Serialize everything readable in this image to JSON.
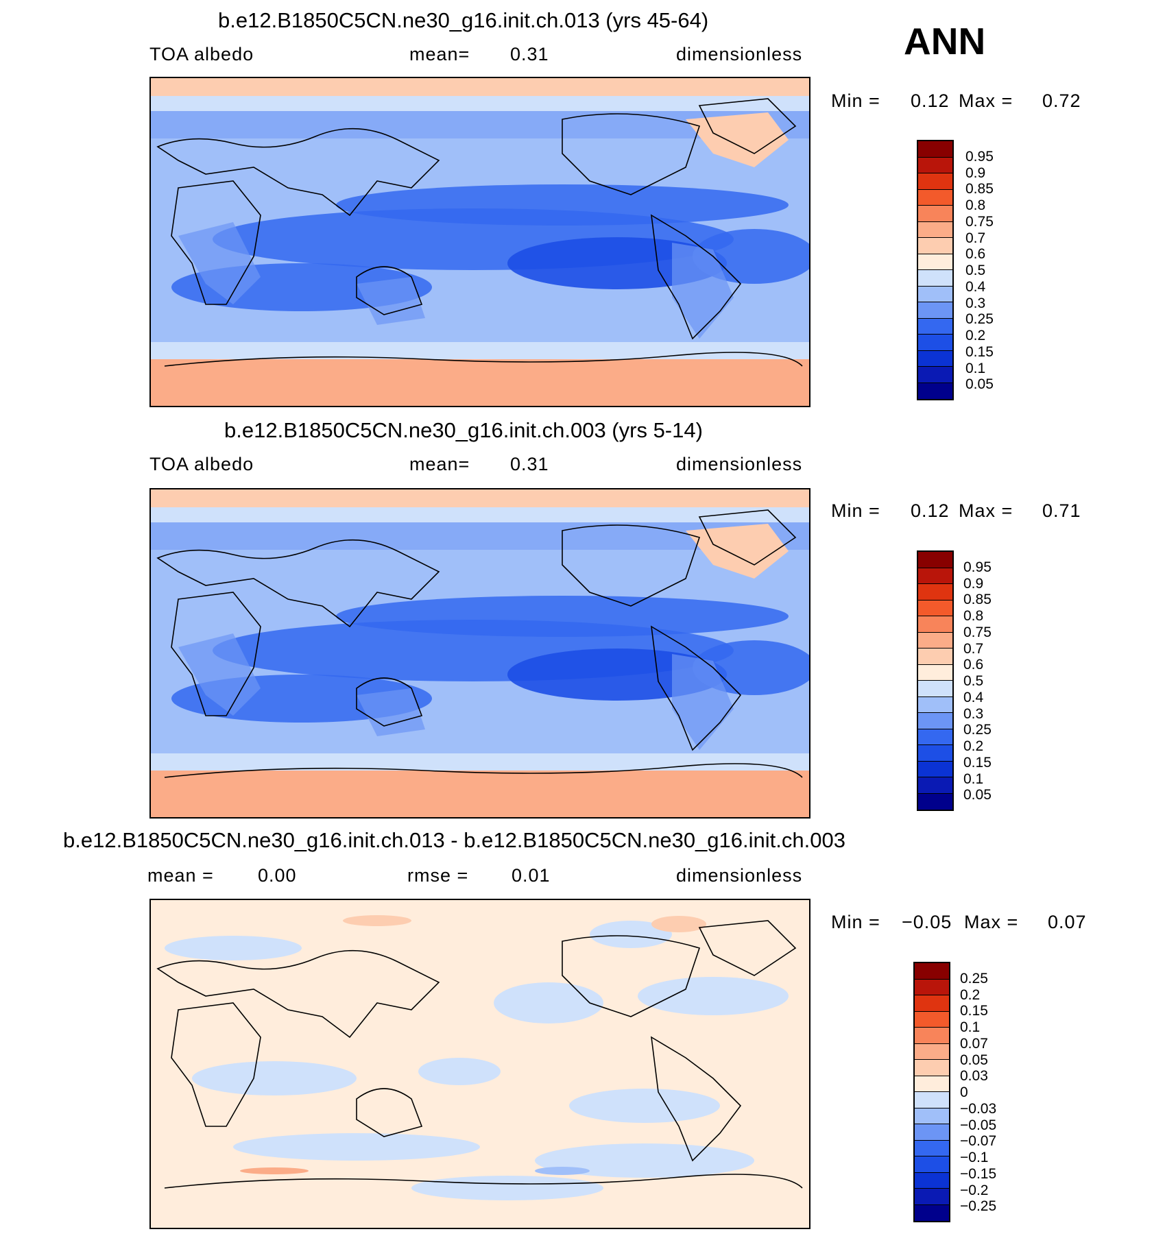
{
  "season": "ANN",
  "palettes": {
    "abs": [
      "#00008c",
      "#0a1ab4",
      "#0b33d4",
      "#1d4fe6",
      "#3468f0",
      "#6c95f5",
      "#a0bff9",
      "#cfe1fb",
      "#ffeddc",
      "#fdcdb0",
      "#fbac88",
      "#f8845a",
      "#f35a2b",
      "#df3410",
      "#b9150a",
      "#880000"
    ],
    "diff": [
      "#00008c",
      "#0a1ab4",
      "#0b33d4",
      "#1d4fe6",
      "#3468f0",
      "#6c95f5",
      "#a0bff9",
      "#cfe1fb",
      "#ffeddc",
      "#fdcdb0",
      "#fbac88",
      "#f8845a",
      "#f35a2b",
      "#df3410",
      "#b9150a",
      "#880000"
    ]
  },
  "panels": [
    {
      "title": "b.e12.B1850C5CN.ne30_g16.init.ch.013 (yrs 45-64)",
      "left_label": "TOA albedo",
      "center_label": "mean=",
      "center_value": "0.31",
      "right_label": "dimensionless",
      "min_label": "Min =",
      "min_value": "0.12",
      "max_label": "Max =",
      "max_value": "0.72",
      "colorbar_labels": [
        "0.95",
        "0.9",
        "0.85",
        "0.8",
        "0.75",
        "0.7",
        "0.6",
        "0.5",
        "0.4",
        "0.3",
        "0.25",
        "0.2",
        "0.15",
        "0.1",
        "0.05"
      ]
    },
    {
      "title": "b.e12.B1850C5CN.ne30_g16.init.ch.003 (yrs 5-14)",
      "left_label": "TOA albedo",
      "center_label": "mean=",
      "center_value": "0.31",
      "right_label": "dimensionless",
      "min_label": "Min =",
      "min_value": "0.12",
      "max_label": "Max =",
      "max_value": "0.71",
      "colorbar_labels": [
        "0.95",
        "0.9",
        "0.85",
        "0.8",
        "0.75",
        "0.7",
        "0.6",
        "0.5",
        "0.4",
        "0.3",
        "0.25",
        "0.2",
        "0.15",
        "0.1",
        "0.05"
      ]
    },
    {
      "title": "b.e12.B1850C5CN.ne30_g16.init.ch.013 - b.e12.B1850C5CN.ne30_g16.init.ch.003",
      "left_label": "mean =",
      "left_value": "0.00",
      "center_label": "rmse =",
      "center_value": "0.01",
      "right_label": "dimensionless",
      "min_label": "Min =",
      "min_value": "−0.05",
      "max_label": "Max =",
      "max_value": "0.07",
      "colorbar_labels": [
        "0.25",
        "0.2",
        "0.15",
        "0.1",
        "0.07",
        "0.05",
        "0.03",
        "0",
        "−0.03",
        "−0.05",
        "−0.07",
        "−0.1",
        "−0.15",
        "−0.2",
        "−0.25"
      ]
    }
  ]
}
